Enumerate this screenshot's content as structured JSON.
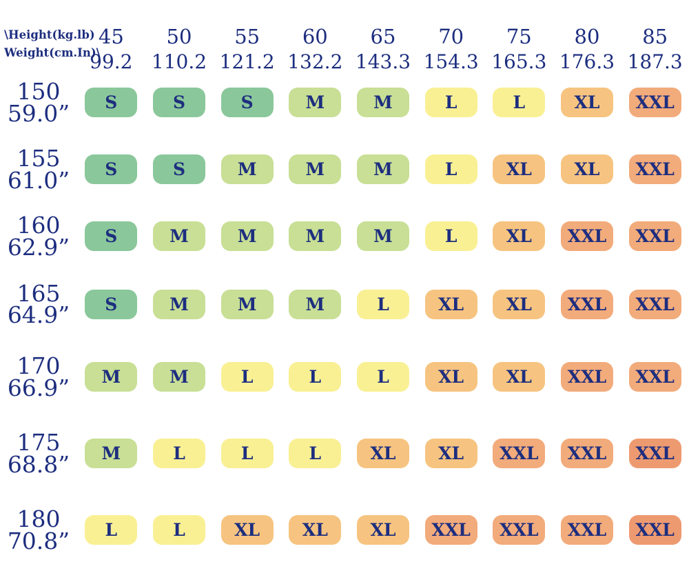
{
  "palette": {
    "green": "#8ac79a",
    "yellow_green": "#c8df95",
    "yellow": "#f9f094",
    "orange": "#f6c480",
    "salmon": "#f2ab7b",
    "coral": "#ee9a70",
    "navy_text": "#1d2e7f"
  },
  "header": {
    "corner_line1": "\\Height(kg.lb)",
    "corner_line2": "Weight(cm.In)\\",
    "columns": [
      {
        "kg": "45",
        "lb": "99.2"
      },
      {
        "kg": "50",
        "lb": "110.2"
      },
      {
        "kg": "55",
        "lb": "121.2"
      },
      {
        "kg": "60",
        "lb": "132.2"
      },
      {
        "kg": "65",
        "lb": "143.3"
      },
      {
        "kg": "70",
        "lb": "154.3"
      },
      {
        "kg": "75",
        "lb": "165.3"
      },
      {
        "kg": "80",
        "lb": "176.3"
      },
      {
        "kg": "85",
        "lb": "187.3"
      }
    ]
  },
  "rows": [
    {
      "cm": "150",
      "inch": "59.0”",
      "sizes": [
        "S",
        "S",
        "S",
        "M",
        "M",
        "L",
        "L",
        "XL",
        "XXL"
      ],
      "colors": [
        "green",
        "green",
        "green",
        "yellow_green",
        "yellow_green",
        "yellow",
        "yellow",
        "orange",
        "salmon"
      ]
    },
    {
      "cm": "155",
      "inch": "61.0”",
      "sizes": [
        "S",
        "S",
        "M",
        "M",
        "M",
        "L",
        "XL",
        "XL",
        "XXL"
      ],
      "colors": [
        "green",
        "green",
        "yellow_green",
        "yellow_green",
        "yellow_green",
        "yellow",
        "orange",
        "orange",
        "salmon"
      ]
    },
    {
      "cm": "160",
      "inch": "62.9”",
      "sizes": [
        "S",
        "M",
        "M",
        "M",
        "M",
        "L",
        "XL",
        "XXL",
        "XXL"
      ],
      "colors": [
        "green",
        "yellow_green",
        "yellow_green",
        "yellow_green",
        "yellow_green",
        "yellow",
        "orange",
        "salmon",
        "salmon"
      ]
    },
    {
      "cm": "165",
      "inch": "64.9”",
      "sizes": [
        "S",
        "M",
        "M",
        "M",
        "L",
        "XL",
        "XL",
        "XXL",
        "XXL"
      ],
      "colors": [
        "green",
        "yellow_green",
        "yellow_green",
        "yellow_green",
        "yellow",
        "orange",
        "orange",
        "salmon",
        "salmon"
      ]
    },
    {
      "cm": "170",
      "inch": "66.9”",
      "sizes": [
        "M",
        "M",
        "L",
        "L",
        "L",
        "XL",
        "XL",
        "XXL",
        "XXL"
      ],
      "colors": [
        "yellow_green",
        "yellow_green",
        "yellow",
        "yellow",
        "yellow",
        "orange",
        "orange",
        "salmon",
        "salmon"
      ]
    },
    {
      "cm": "175",
      "inch": "68.8”",
      "sizes": [
        "M",
        "L",
        "L",
        "L",
        "XL",
        "XL",
        "XXL",
        "XXL",
        "XXL"
      ],
      "colors": [
        "yellow_green",
        "yellow",
        "yellow",
        "yellow",
        "orange",
        "orange",
        "salmon",
        "salmon",
        "coral"
      ]
    },
    {
      "cm": "180",
      "inch": "70.8”",
      "sizes": [
        "L",
        "L",
        "XL",
        "XL",
        "XL",
        "XXL",
        "XXL",
        "XXL",
        "XXL"
      ],
      "colors": [
        "yellow",
        "yellow",
        "orange",
        "orange",
        "orange",
        "salmon",
        "salmon",
        "salmon",
        "coral"
      ]
    }
  ],
  "chart_data": {
    "type": "heatmap",
    "title": "Size chart by height and weight",
    "corner_label_line1": "\\Height(kg.lb)",
    "corner_label_line2": "Weight(cm.In)\\",
    "columns_weight_kg": [
      45,
      50,
      55,
      60,
      65,
      70,
      75,
      80,
      85
    ],
    "columns_weight_lb": [
      99.2,
      110.2,
      121.2,
      132.2,
      143.3,
      154.3,
      165.3,
      176.3,
      187.3
    ],
    "rows_height_cm": [
      150,
      155,
      160,
      165,
      170,
      175,
      180
    ],
    "rows_height_in": [
      "59.0”",
      "61.0”",
      "62.9”",
      "64.9”",
      "66.9”",
      "68.8”",
      "70.8”"
    ],
    "size_values": [
      [
        "S",
        "S",
        "S",
        "M",
        "M",
        "L",
        "L",
        "XL",
        "XXL"
      ],
      [
        "S",
        "S",
        "M",
        "M",
        "M",
        "L",
        "XL",
        "XL",
        "XXL"
      ],
      [
        "S",
        "M",
        "M",
        "M",
        "M",
        "L",
        "XL",
        "XXL",
        "XXL"
      ],
      [
        "S",
        "M",
        "M",
        "M",
        "L",
        "XL",
        "XL",
        "XXL",
        "XXL"
      ],
      [
        "M",
        "M",
        "L",
        "L",
        "L",
        "XL",
        "XL",
        "XXL",
        "XXL"
      ],
      [
        "M",
        "L",
        "L",
        "L",
        "XL",
        "XL",
        "XXL",
        "XXL",
        "XXL"
      ],
      [
        "L",
        "L",
        "XL",
        "XL",
        "XL",
        "XXL",
        "XXL",
        "XXL",
        "XXL"
      ]
    ],
    "legend_colors": {
      "S": "#8ac79a",
      "M": "#c8df95",
      "L": "#f9f094",
      "XL": "#f6c480",
      "XXL": "#f2ab7b",
      "XXL_max": "#ee9a70"
    },
    "grid": false,
    "legend_position": "none"
  }
}
